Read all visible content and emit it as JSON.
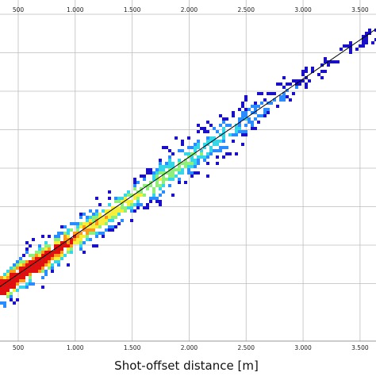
{
  "chart_data": {
    "type": "heatmap",
    "title": "",
    "xlabel": "Shot-offset distance [m]",
    "ylabel": "",
    "x_tick_labels": [
      "500",
      "1.000",
      "1.500",
      "2.000",
      "2.500",
      "3.000",
      "3.500"
    ],
    "x_tick_values": [
      500,
      1000,
      1500,
      2000,
      2500,
      3000,
      3500
    ],
    "xlim": [
      340,
      3640
    ],
    "y_grid_count": 8,
    "grid": true,
    "colormap": [
      "#1a10c8",
      "#2a8cff",
      "#35d6e8",
      "#8ef07a",
      "#f7f03a",
      "#ff9a1a",
      "#e01010"
    ],
    "trend_line": {
      "x": [
        340,
        3640
      ],
      "y_frac": [
        0.16,
        0.915
      ],
      "color": "#000000"
    },
    "density_band": {
      "x_range": [
        340,
        3640
      ],
      "peak_x": 600
    }
  }
}
